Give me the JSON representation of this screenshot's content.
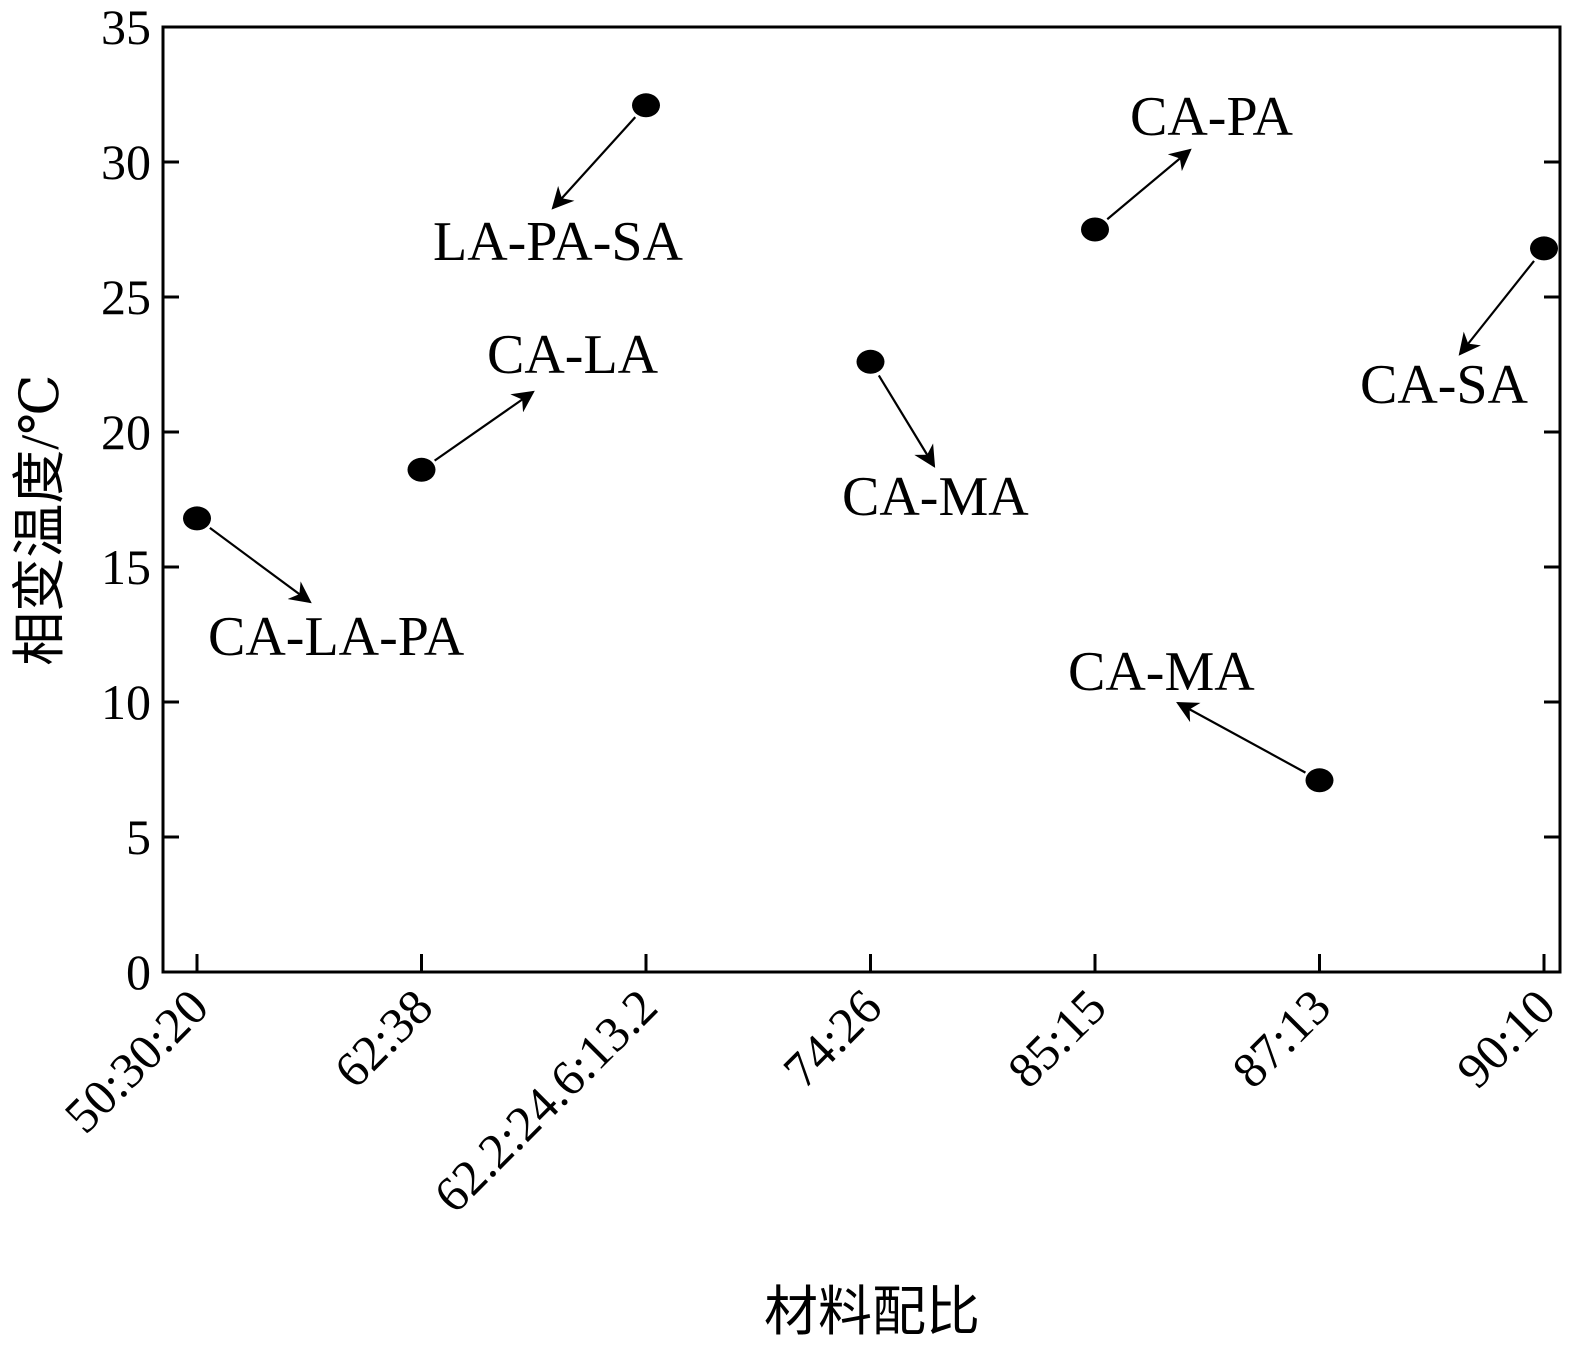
{
  "chart_data": {
    "type": "scatter",
    "xlabel": "材料配比",
    "ylabel": "相变温度/℃",
    "categories": [
      "50:30:20",
      "62:38",
      "62.2:24.6:13.2",
      "74:26",
      "85:15",
      "87:13",
      "90:10"
    ],
    "points": [
      {
        "category": "50:30:20",
        "y": 16.8,
        "label": "CA-LA-PA"
      },
      {
        "category": "62:38",
        "y": 18.6,
        "label": "CA-LA"
      },
      {
        "category": "62.2:24.6:13.2",
        "y": 32.1,
        "label": "LA-PA-SA"
      },
      {
        "category": "74:26",
        "y": 22.6,
        "label": "CA-MA"
      },
      {
        "category": "85:15",
        "y": 27.5,
        "label": "CA-PA"
      },
      {
        "category": "87:13",
        "y": 7.1,
        "label": "CA-MA"
      },
      {
        "category": "90:10",
        "y": 26.8,
        "label": "CA-SA"
      }
    ],
    "ylim": [
      0,
      35
    ],
    "yticks": [
      0,
      5,
      10,
      15,
      20,
      25,
      30,
      35
    ],
    "grid": false,
    "marker_color": "#000000"
  }
}
